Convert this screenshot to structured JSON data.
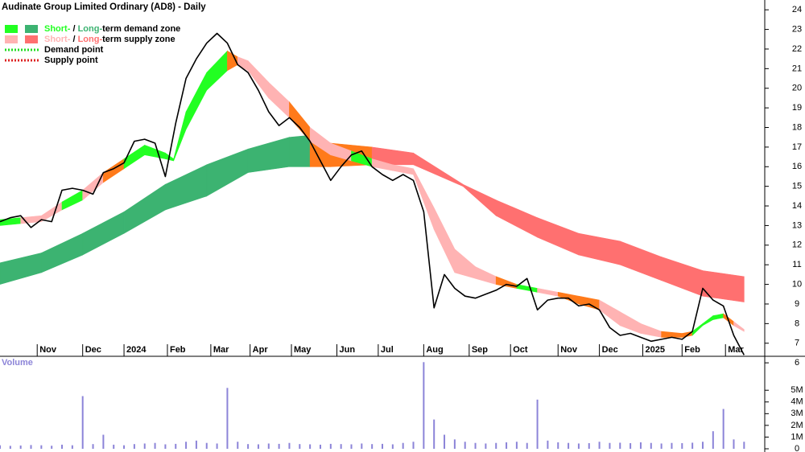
{
  "chart_data": {
    "type": "stock",
    "title": "Audinate Group Limited Ordinary (AD8) - Daily",
    "legend_position": "top-left",
    "legend": [
      {
        "parts": [
          "Short-",
          " / ",
          "Long-",
          "term demand zone"
        ],
        "colors": [
          "#22ff22",
          "#3cb371"
        ]
      },
      {
        "parts": [
          "Short-",
          " / ",
          "Long-",
          "term supply zone"
        ],
        "colors": [
          "#ffb3b3",
          "#ff7070"
        ]
      },
      {
        "label": "Demand point",
        "color": "#22dd22",
        "style": "dotted"
      },
      {
        "label": "Supply point",
        "color": "#dd2222",
        "style": "dotted"
      }
    ],
    "overlap_color": "#ff7a1a",
    "color": "#000000",
    "x": [
      0,
      5,
      10,
      15,
      20,
      25,
      30,
      35,
      40,
      45,
      50,
      55,
      60,
      65,
      70,
      75,
      80,
      85,
      90,
      95,
      100,
      105,
      110,
      115,
      120,
      125,
      130,
      135,
      140,
      145,
      150,
      155,
      160,
      165,
      170,
      175,
      180,
      185,
      190,
      195,
      200,
      205,
      210,
      215,
      220,
      225,
      230,
      235,
      240,
      245,
      250,
      255,
      260,
      265,
      270,
      275,
      280,
      285,
      290,
      295,
      300,
      305,
      310,
      315,
      320,
      325,
      330,
      335,
      340,
      345,
      350,
      355,
      360
    ],
    "values": [
      13.2,
      13.4,
      13.5,
      12.9,
      13.3,
      13.2,
      14.8,
      14.9,
      14.8,
      14.6,
      15.7,
      15.9,
      16.2,
      17.3,
      17.4,
      17.2,
      15.5,
      18.2,
      20.5,
      21.5,
      22.3,
      22.8,
      22.3,
      21.2,
      20.8,
      19.9,
      18.8,
      18.1,
      18.5,
      18.0,
      17.3,
      16.3,
      15.3,
      16.0,
      16.6,
      16.8,
      16.0,
      15.6,
      15.3,
      15.6,
      15.3,
      13.7,
      8.8,
      10.5,
      9.8,
      9.4,
      9.3,
      9.5,
      9.7,
      10.0,
      9.9,
      10.3,
      8.7,
      9.2,
      9.3,
      9.3,
      8.9,
      9.0,
      8.7,
      7.8,
      7.4,
      7.5,
      7.3,
      7.1,
      7.2,
      7.3,
      7.2,
      7.6,
      9.8,
      9.2,
      8.9,
      7.4,
      6.4
    ],
    "zones": {
      "long": {
        "x": [
          0,
          20,
          40,
          60,
          80,
          100,
          120,
          140,
          150,
          160,
          180,
          200,
          224,
          240,
          260,
          280,
          300,
          320,
          340,
          360
        ],
        "lower": [
          10.0,
          10.6,
          11.5,
          12.6,
          13.8,
          14.5,
          15.7,
          16.0,
          16.0,
          16.0,
          16.1,
          16.1,
          15.0,
          13.5,
          12.4,
          11.5,
          11.0,
          10.2,
          9.4,
          9.1
        ],
        "upper": [
          11.1,
          11.6,
          12.6,
          13.7,
          15.1,
          16.1,
          16.9,
          17.5,
          17.6,
          17.2,
          17.0,
          16.7,
          15.1,
          14.3,
          13.4,
          12.6,
          12.2,
          11.4,
          10.7,
          10.4
        ]
      },
      "short": {
        "x": [
          0,
          10,
          20,
          30,
          40,
          50,
          60,
          70,
          80,
          84,
          90,
          100,
          110,
          115,
          120,
          130,
          140,
          150,
          160,
          170,
          180,
          190,
          200,
          210,
          220,
          230,
          240,
          250,
          260,
          270,
          280,
          290,
          300,
          310,
          320,
          330,
          335,
          340,
          345,
          350,
          355,
          360
        ],
        "lower": [
          13.0,
          13.1,
          13.2,
          13.8,
          14.3,
          15.2,
          15.9,
          16.6,
          16.4,
          16.3,
          17.9,
          19.9,
          20.9,
          21.2,
          20.9,
          19.5,
          18.5,
          17.3,
          16.6,
          16.3,
          16.0,
          15.8,
          15.6,
          12.8,
          10.6,
          10.3,
          10.0,
          9.8,
          9.6,
          9.4,
          9.0,
          8.7,
          7.9,
          7.5,
          7.3,
          7.3,
          7.4,
          7.9,
          8.2,
          8.3,
          7.9,
          7.6
        ],
        "upper": [
          13.3,
          13.4,
          13.5,
          14.2,
          14.8,
          15.7,
          16.4,
          17.1,
          16.7,
          16.4,
          18.8,
          20.8,
          21.9,
          21.6,
          21.4,
          20.3,
          19.3,
          18.0,
          17.2,
          16.8,
          16.4,
          16.1,
          15.9,
          13.9,
          11.8,
          10.9,
          10.4,
          10.0,
          9.8,
          9.6,
          9.4,
          9.2,
          8.6,
          8.0,
          7.6,
          7.5,
          7.6,
          8.0,
          8.4,
          8.5,
          8.1,
          7.7
        ]
      }
    },
    "xlim": [
      0,
      370
    ],
    "xticks": [
      {
        "value": 18,
        "label": "Nov"
      },
      {
        "value": 40,
        "label": "Dec"
      },
      {
        "value": 60,
        "label": "2024"
      },
      {
        "value": 81,
        "label": "Feb"
      },
      {
        "value": 102,
        "label": "Mar"
      },
      {
        "value": 121,
        "label": "Apr"
      },
      {
        "value": 141,
        "label": "May"
      },
      {
        "value": 163,
        "label": "Jun"
      },
      {
        "value": 183,
        "label": "Jul"
      },
      {
        "value": 205,
        "label": "Aug"
      },
      {
        "value": 227,
        "label": "Sep"
      },
      {
        "value": 247,
        "label": "Oct"
      },
      {
        "value": 270,
        "label": "Nov"
      },
      {
        "value": 290,
        "label": "Dec"
      },
      {
        "value": 311,
        "label": "2025"
      },
      {
        "value": 330,
        "label": "Feb"
      },
      {
        "value": 351,
        "label": "Mar"
      }
    ],
    "ylim": [
      5.8,
      24.5
    ],
    "yticks": [
      6,
      7,
      8,
      9,
      10,
      11,
      12,
      13,
      14,
      15,
      16,
      17,
      18,
      19,
      20,
      21,
      22,
      23,
      24
    ],
    "volume": {
      "label": "Volume",
      "color": "#8c84d8",
      "values": [
        300000,
        250000,
        280000,
        320000,
        300000,
        260000,
        350000,
        300000,
        4500000,
        400000,
        1200000,
        350000,
        300000,
        400000,
        450000,
        500000,
        380000,
        420000,
        600000,
        700000,
        500000,
        450000,
        5200000,
        600000,
        400000,
        380000,
        450000,
        420000,
        500000,
        400000,
        380000,
        350000,
        420000,
        400000,
        380000,
        450000,
        400000,
        420000,
        380000,
        500000,
        600000,
        7400000,
        2500000,
        1200000,
        800000,
        600000,
        500000,
        450000,
        500000,
        550000,
        600000,
        500000,
        4200000,
        700000,
        550000,
        500000,
        450000,
        480000,
        600000,
        500000,
        520000,
        480000,
        550000,
        500000,
        450000,
        500000,
        480000,
        520000,
        600000,
        1500000,
        3400000,
        800000,
        600000
      ],
      "ylim": [
        0,
        7900000
      ],
      "yticks": [
        0,
        {
          "value": 1000000,
          "label": "1M"
        },
        {
          "value": 2000000,
          "label": "2M"
        },
        {
          "value": 3000000,
          "label": "3M"
        },
        {
          "value": 4000000,
          "label": "4M"
        },
        {
          "value": 5000000,
          "label": "5M"
        }
      ]
    }
  }
}
